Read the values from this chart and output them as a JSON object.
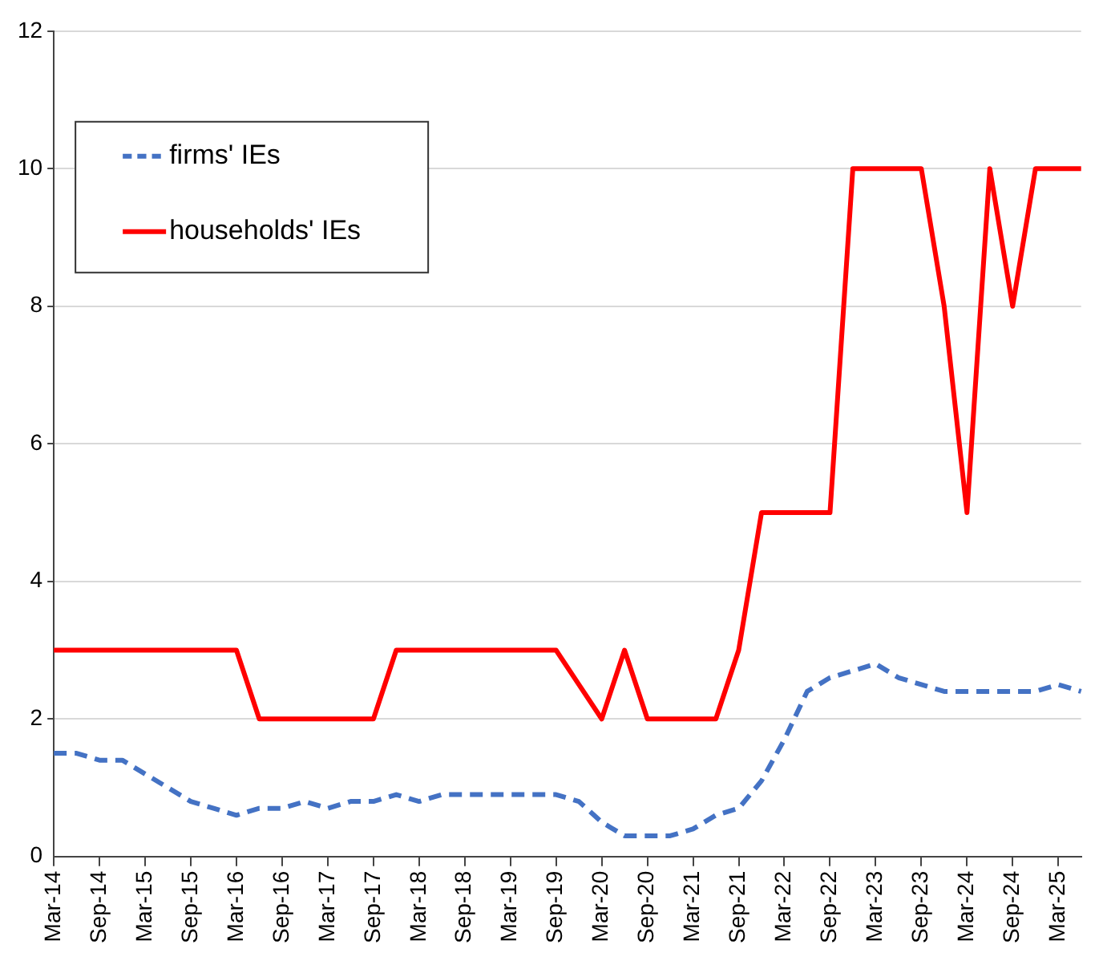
{
  "chart_data": {
    "type": "line",
    "categories": [
      "Mar-14",
      null,
      "Sep-14",
      null,
      "Mar-15",
      null,
      "Sep-15",
      null,
      "Mar-16",
      null,
      "Sep-16",
      null,
      "Mar-17",
      null,
      "Sep-17",
      null,
      "Mar-18",
      null,
      "Sep-18",
      null,
      "Mar-19",
      null,
      "Sep-19",
      null,
      "Mar-20",
      null,
      "Sep-20",
      null,
      "Mar-21",
      null,
      "Sep-21",
      null,
      "Mar-22",
      null,
      "Sep-22",
      null,
      "Mar-23",
      null,
      "Sep-23",
      null,
      "Mar-24",
      null,
      "Sep-24",
      null,
      "Mar-25",
      null
    ],
    "series": [
      {
        "name": "firms' IEs",
        "color": "#4472c4",
        "line_style": "dashed",
        "values": [
          1.5,
          1.5,
          1.4,
          1.4,
          1.2,
          1.0,
          0.8,
          0.7,
          0.6,
          0.7,
          0.7,
          0.8,
          0.7,
          0.8,
          0.8,
          0.9,
          0.8,
          0.9,
          0.9,
          0.9,
          0.9,
          0.9,
          0.9,
          0.8,
          0.5,
          0.3,
          0.3,
          0.3,
          0.4,
          0.6,
          0.7,
          1.1,
          1.7,
          2.4,
          2.6,
          2.7,
          2.8,
          2.6,
          2.5,
          2.4,
          2.4,
          2.4,
          2.4,
          2.4,
          2.5,
          2.4
        ]
      },
      {
        "name": "households' IEs",
        "color": "#ff0000",
        "line_style": "solid",
        "values": [
          3,
          3,
          3,
          3,
          3,
          3,
          3,
          3,
          3,
          2,
          2,
          2,
          2,
          2,
          2,
          3,
          3,
          3,
          3,
          3,
          3,
          3,
          3,
          2.5,
          2,
          3,
          2,
          2,
          2,
          2,
          3,
          5,
          5,
          5,
          5,
          10,
          10,
          10,
          10,
          8,
          5,
          10,
          8,
          10,
          10,
          10
        ]
      }
    ],
    "ylim": [
      0,
      12
    ],
    "yticks": [
      0,
      2,
      4,
      6,
      8,
      10,
      12
    ],
    "grid": "y",
    "legend": "top left",
    "marker": "none"
  }
}
